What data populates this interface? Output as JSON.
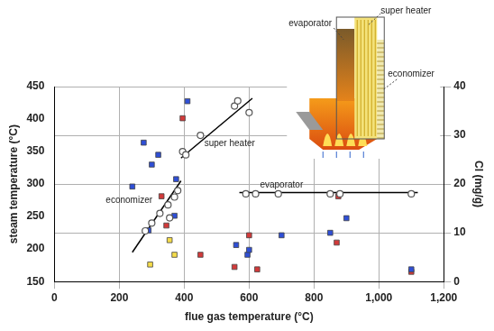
{
  "chart_data": {
    "type": "scatter",
    "x_label": "flue gas temperature (°C)",
    "y_label": "steam temperature (°C)",
    "y2_label": "Cl (mg/g)",
    "xlim": [
      0,
      1200
    ],
    "xticks": [
      0,
      200,
      400,
      600,
      800,
      1000,
      1200
    ],
    "ylim": [
      150,
      450
    ],
    "yticks": [
      150,
      200,
      250,
      300,
      350,
      400,
      450
    ],
    "y2lim": [
      0,
      40
    ],
    "y2ticks": [
      0,
      10,
      20,
      30,
      40
    ],
    "grid": true,
    "inset_labels": [
      "evaporator",
      "super heater",
      "economizer"
    ],
    "series": [
      {
        "type": "scatter",
        "marker": "open_circle",
        "color": "#555555",
        "x": [
          280,
          300,
          325,
          350,
          355,
          370,
          380,
          395,
          405,
          450,
          555,
          565,
          600,
          590,
          620,
          690,
          850,
          880,
          1100
        ],
        "values": [
          228,
          240,
          255,
          268,
          248,
          280,
          290,
          350,
          345,
          375,
          420,
          428,
          410,
          285,
          285,
          285,
          285,
          285,
          285
        ]
      },
      {
        "type": "scatter",
        "marker": "square",
        "color": "#2f4fd6",
        "axis": "y2",
        "x": [
          240,
          275,
          300,
          320,
          370,
          375,
          410,
          290,
          560,
          595,
          600,
          700,
          850,
          900,
          1100
        ],
        "values": [
          19.5,
          28.5,
          24,
          26,
          13.5,
          21,
          37,
          10.5,
          7.5,
          5.5,
          6.5,
          9.5,
          10,
          13,
          2.5
        ]
      },
      {
        "type": "scatter",
        "marker": "square",
        "color": "#d23a3a",
        "axis": "y2",
        "x": [
          330,
          345,
          395,
          450,
          555,
          600,
          625,
          870,
          875,
          1100
        ],
        "values": [
          17.5,
          11.5,
          33.5,
          5.5,
          3,
          9.5,
          2.5,
          8,
          17.5,
          2
        ]
      },
      {
        "type": "scatter",
        "marker": "square",
        "color": "#f5dc4a",
        "axis": "y2",
        "x": [
          295,
          355,
          370
        ],
        "values": [
          3.5,
          8.5,
          5.5
        ]
      },
      {
        "type": "line",
        "name": "economizer",
        "line_style": "solid",
        "color": "#000000",
        "x": [
          240,
          390
        ],
        "values": [
          195,
          305
        ],
        "label_at": [
          230,
          275
        ]
      },
      {
        "type": "line",
        "name": "super heater",
        "line_style": "solid",
        "color": "#000000",
        "x": [
          390,
          610
        ],
        "values": [
          340,
          432
        ],
        "label_at": [
          540,
          362
        ]
      },
      {
        "type": "line",
        "name": "evaporator",
        "line_style": "solid",
        "color": "#000000",
        "x": [
          570,
          1120
        ],
        "values": [
          287,
          287
        ],
        "label_at": [
          700,
          298
        ]
      }
    ]
  }
}
